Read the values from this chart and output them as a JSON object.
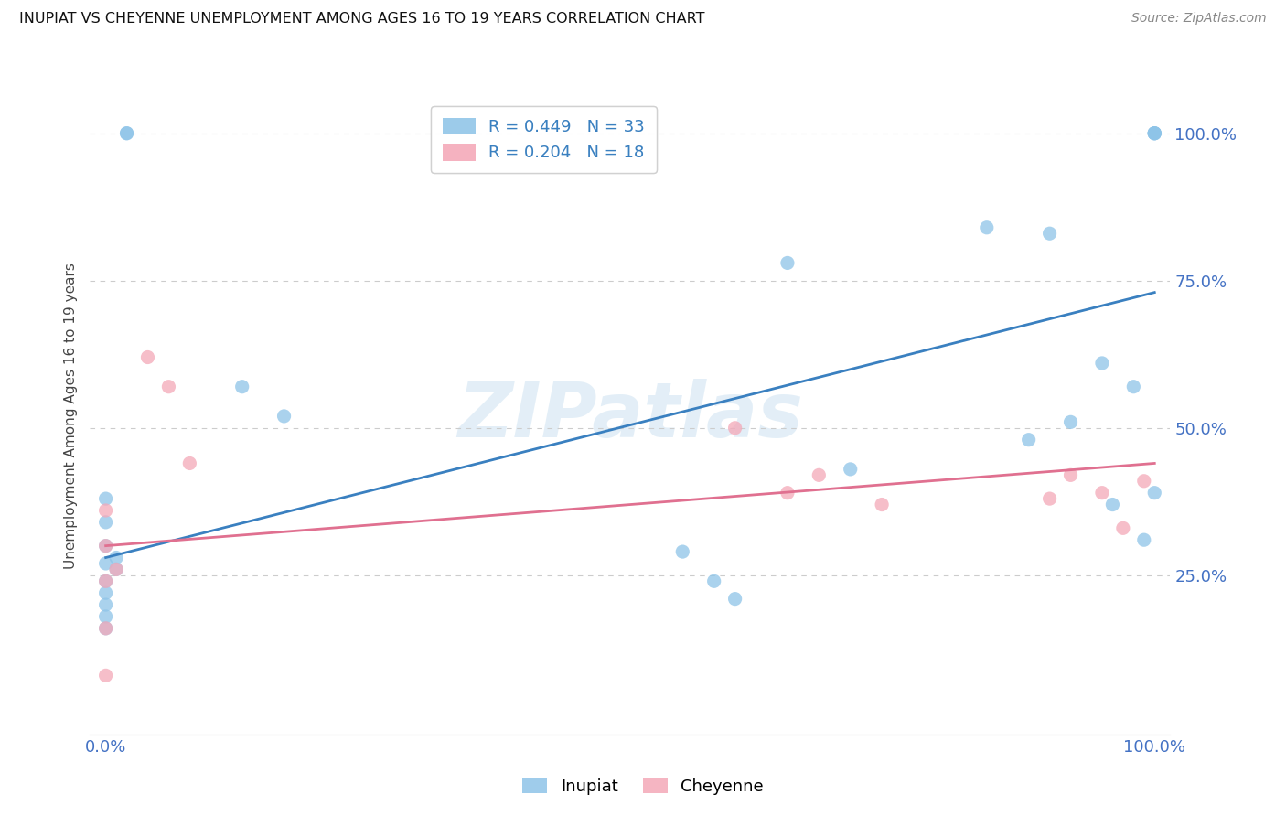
{
  "title": "INUPIAT VS CHEYENNE UNEMPLOYMENT AMONG AGES 16 TO 19 YEARS CORRELATION CHART",
  "source": "Source: ZipAtlas.com",
  "ylabel": "Unemployment Among Ages 16 to 19 years",
  "xlim": [
    0.0,
    1.0
  ],
  "ylim": [
    0.0,
    1.0
  ],
  "background_color": "#ffffff",
  "watermark": "ZIPatlas",
  "inupiat_color": "#8ec4e8",
  "cheyenne_color": "#f4a8b8",
  "inupiat_R": 0.449,
  "inupiat_N": 33,
  "cheyenne_R": 0.204,
  "cheyenne_N": 18,
  "inupiat_x": [
    0.02,
    0.02,
    0.0,
    0.0,
    0.0,
    0.0,
    0.0,
    0.0,
    0.0,
    0.0,
    0.0,
    0.01,
    0.01,
    0.13,
    0.17,
    0.55,
    0.58,
    0.6,
    0.65,
    0.71,
    0.84,
    0.88,
    0.9,
    0.92,
    0.95,
    0.96,
    0.98,
    0.99,
    1.0,
    1.0,
    1.0,
    1.0,
    1.0
  ],
  "inupiat_y": [
    1.0,
    1.0,
    0.38,
    0.34,
    0.3,
    0.27,
    0.24,
    0.22,
    0.2,
    0.18,
    0.16,
    0.28,
    0.26,
    0.57,
    0.52,
    0.29,
    0.24,
    0.21,
    0.78,
    0.43,
    0.84,
    0.48,
    0.83,
    0.51,
    0.61,
    0.37,
    0.57,
    0.31,
    0.39,
    1.0,
    1.0,
    1.0,
    1.0
  ],
  "cheyenne_x": [
    0.0,
    0.0,
    0.0,
    0.0,
    0.0,
    0.01,
    0.04,
    0.06,
    0.08,
    0.6,
    0.65,
    0.68,
    0.74,
    0.9,
    0.92,
    0.95,
    0.97,
    0.99
  ],
  "cheyenne_y": [
    0.36,
    0.3,
    0.24,
    0.16,
    0.08,
    0.26,
    0.62,
    0.57,
    0.44,
    0.5,
    0.39,
    0.42,
    0.37,
    0.38,
    0.42,
    0.39,
    0.33,
    0.41
  ],
  "inupiat_line_x": [
    0.0,
    1.0
  ],
  "inupiat_line_y": [
    0.28,
    0.73
  ],
  "cheyenne_line_x": [
    0.0,
    1.0
  ],
  "cheyenne_line_y": [
    0.3,
    0.44
  ],
  "grid_color": "#cccccc",
  "tick_label_color": "#4472c4",
  "ytick_positions": [
    0.0,
    0.25,
    0.5,
    0.75,
    1.0
  ],
  "ytick_labels": [
    "",
    "25.0%",
    "50.0%",
    "75.0%",
    "100.0%"
  ],
  "xtick_positions": [
    0.0,
    0.25,
    0.5,
    0.75,
    1.0
  ],
  "xtick_labels": [
    "0.0%",
    "",
    "",
    "",
    "100.0%"
  ],
  "marker_size": 120
}
